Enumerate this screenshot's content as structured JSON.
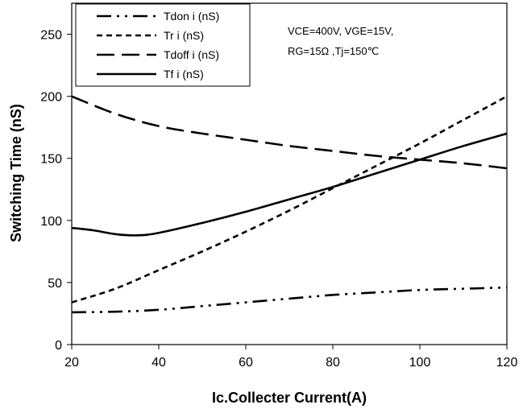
{
  "chart_data": {
    "type": "line",
    "xlabel": "Ic.Collecter Current(A)",
    "ylabel": "Switching Time (nS)",
    "xlim": [
      20,
      120
    ],
    "ylim": [
      0,
      275
    ],
    "xticks": [
      20,
      40,
      60,
      80,
      100,
      120
    ],
    "yticks": [
      0,
      50,
      100,
      150,
      200,
      250
    ],
    "grid": false,
    "legend_position": "top-left",
    "annotations": [
      "VCE=400V, VGE=15V,",
      "RG=15Ω ,Tj=150℃"
    ],
    "series": [
      {
        "name": "Tdon i (nS)",
        "dash": "dash-dot-dot",
        "x": [
          20,
          30,
          40,
          50,
          60,
          70,
          80,
          90,
          100,
          110,
          120
        ],
        "y": [
          26,
          26.5,
          28,
          31,
          34,
          37,
          40,
          42,
          44,
          45,
          46
        ]
      },
      {
        "name": "Tr i (nS)",
        "dash": "dash",
        "x": [
          20,
          30,
          40,
          50,
          60,
          70,
          80,
          90,
          100,
          110,
          120
        ],
        "y": [
          34,
          45,
          60,
          75,
          91,
          108,
          126,
          144,
          162,
          181,
          200
        ]
      },
      {
        "name": "Tdoff i (nS)",
        "dash": "long-dash",
        "x": [
          20,
          30,
          40,
          50,
          60,
          70,
          80,
          90,
          100,
          110,
          120
        ],
        "y": [
          200,
          186,
          176,
          170,
          165,
          160,
          156,
          152,
          149,
          146,
          142
        ]
      },
      {
        "name": "Tf i (nS)",
        "dash": "solid",
        "x": [
          20,
          25,
          30,
          35,
          40,
          50,
          60,
          70,
          80,
          90,
          100,
          110,
          120
        ],
        "y": [
          94,
          92,
          89,
          88,
          90,
          98,
          107,
          117,
          127,
          138,
          149,
          160,
          170
        ]
      }
    ]
  }
}
